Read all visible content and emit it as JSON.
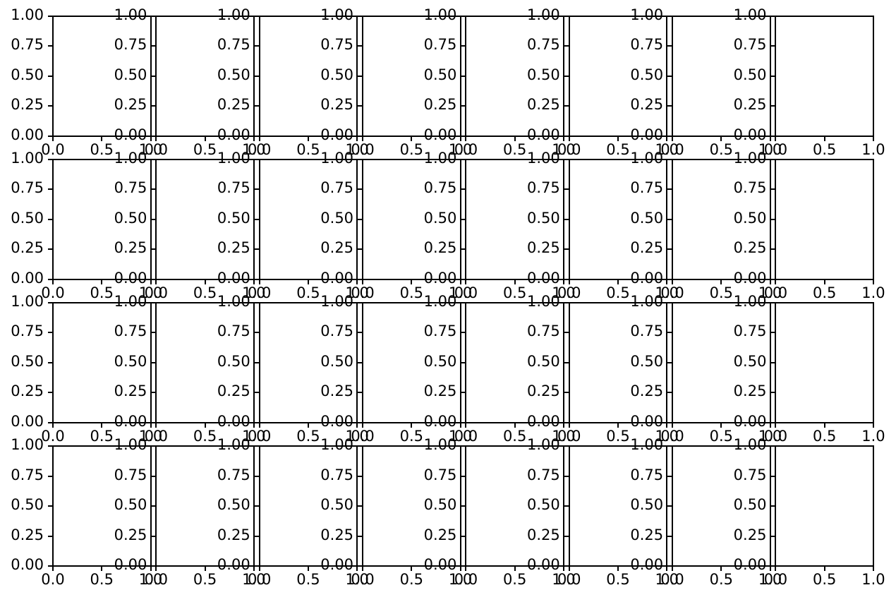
{
  "figure": {
    "background": "#ffffff",
    "axis_color": "#000000",
    "text_color": "#000000"
  },
  "chart_data": {
    "type": "line",
    "title": "",
    "description": "Figure with a 4x8 grid of 32 empty axes (no data plotted). Each subplot shows default 0-1 limits. Subplots are spaced so tightly that each axes' tick labels overlap the neighboring axes, producing overlapping label artifacts at column and row boundaries.",
    "subplot_grid": {
      "rows": 4,
      "cols": 8,
      "count": 32
    },
    "x_ticks": [
      0.0,
      0.5,
      1.0
    ],
    "x_tick_labels": [
      "0.0",
      "0.5",
      "1.0"
    ],
    "y_ticks": [
      0.0,
      0.25,
      0.5,
      0.75,
      1.0
    ],
    "y_tick_labels": [
      "0.00",
      "0.25",
      "0.50",
      "0.75",
      "1.00"
    ],
    "xlim": [
      0.0,
      1.0
    ],
    "ylim": [
      0.0,
      1.0
    ],
    "grid_lines": false,
    "legend": false,
    "series": []
  }
}
